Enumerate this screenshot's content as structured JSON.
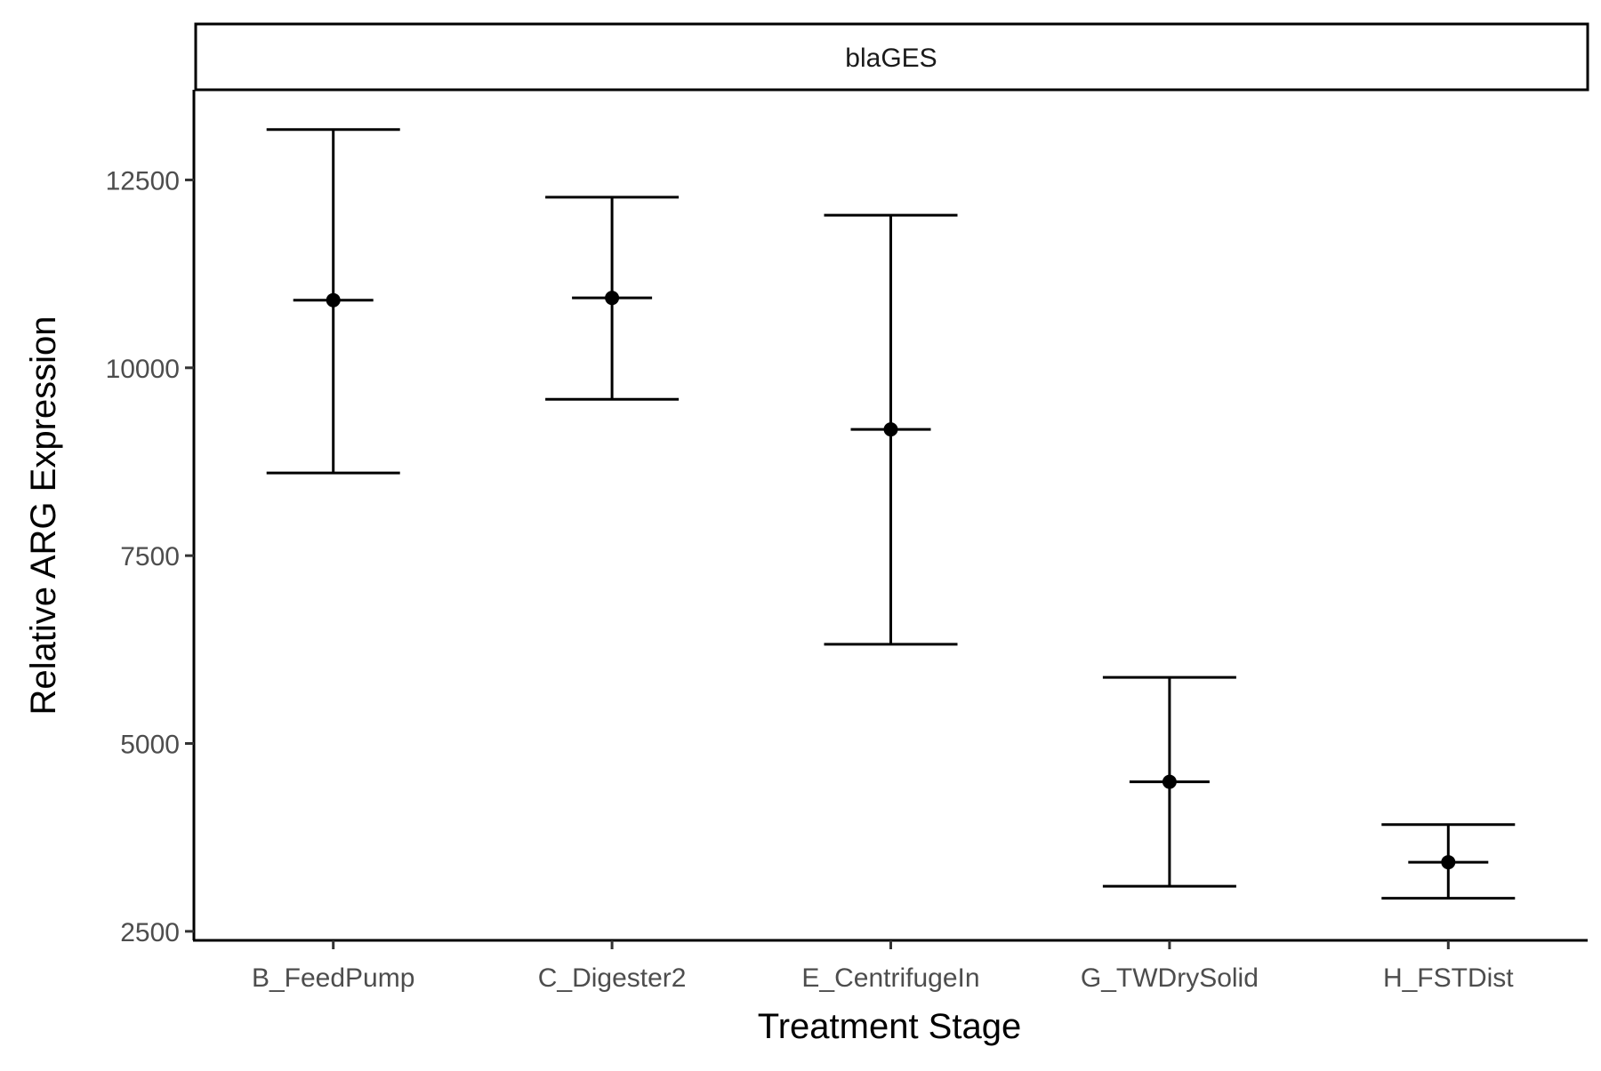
{
  "chart_data": {
    "type": "errorbar",
    "facet_label": "blaGES",
    "xlabel": "Treatment Stage",
    "ylabel": "Relative ARG Expression",
    "categories": [
      "B_FeedPump",
      "C_Digester2",
      "E_CentrifugeIn",
      "G_TWDrySolid",
      "H_FSTDist"
    ],
    "mean": [
      10900,
      10930,
      9180,
      4490,
      3420
    ],
    "lower": [
      8600,
      9580,
      6320,
      3100,
      2940
    ],
    "upper": [
      13170,
      12270,
      12030,
      5880,
      3920
    ],
    "yticks": [
      2500,
      5000,
      7500,
      10000,
      12500
    ],
    "ytick_labels": [
      "2500",
      "5000",
      "7500",
      "10000",
      "12500"
    ],
    "ylim": [
      2380,
      13700
    ],
    "grid": false,
    "colors": {
      "marks": "#000000",
      "tick_text": "#4d4d4d",
      "strip_fill": "#ffffff"
    }
  }
}
